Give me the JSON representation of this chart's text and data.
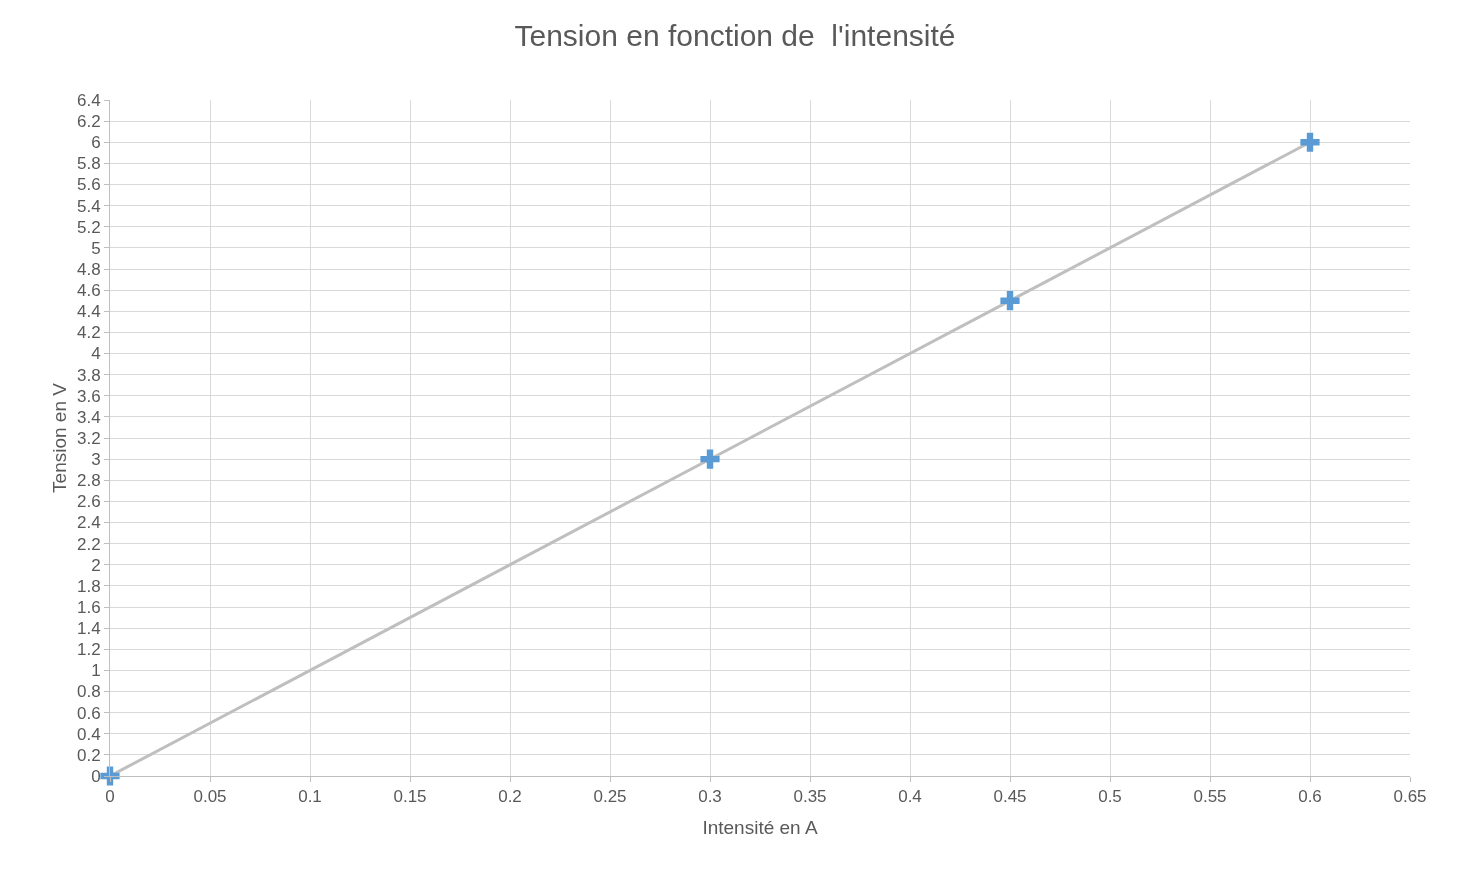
{
  "chart_data": {
    "type": "scatter",
    "title": "Tension en fonction de  l'intensité",
    "xlabel": "Intensité en A",
    "ylabel": "Tension en V",
    "series": [
      {
        "type": "line",
        "color": "#bfbfbf",
        "x": [
          0,
          0.6
        ],
        "values": [
          0,
          6
        ],
        "marker": "none",
        "line_style": "solid"
      },
      {
        "color": "#5b9bd5",
        "x": [
          0,
          0.3,
          0.45,
          0.6
        ],
        "values": [
          0,
          3,
          4.5,
          6
        ],
        "marker": "cross"
      }
    ],
    "xlim": [
      0,
      0.65
    ],
    "xticks": [
      0,
      0.05,
      0.1,
      0.15,
      0.2,
      0.25,
      0.3,
      0.35,
      0.4,
      0.45,
      0.5,
      0.55,
      0.6,
      0.65
    ],
    "ylim": [
      0,
      6.4
    ],
    "yticks": [
      0,
      0.2,
      0.4,
      0.6,
      0.8,
      1,
      1.2,
      1.4,
      1.6,
      1.8,
      2,
      2.2,
      2.4,
      2.6,
      2.8,
      3,
      3.2,
      3.4,
      3.6,
      3.8,
      4,
      4.2,
      4.4,
      4.6,
      4.8,
      5,
      5.2,
      5.4,
      5.6,
      5.8,
      6,
      6.2,
      6.4
    ],
    "grid": true
  }
}
